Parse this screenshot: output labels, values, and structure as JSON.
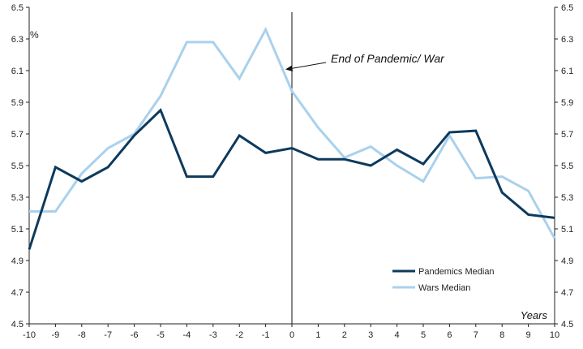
{
  "chart_data": {
    "type": "line",
    "x": [
      -10,
      -9,
      -8,
      -7,
      -6,
      -5,
      -4,
      -3,
      -2,
      -1,
      0,
      1,
      2,
      3,
      4,
      5,
      6,
      7,
      8,
      9,
      10
    ],
    "series": [
      {
        "name": "Pandemics Median",
        "color": "#0d3a5c",
        "values": [
          4.97,
          5.49,
          5.4,
          5.49,
          5.69,
          5.85,
          5.43,
          5.43,
          5.69,
          5.58,
          5.61,
          5.54,
          5.54,
          5.5,
          5.6,
          5.51,
          5.71,
          5.72,
          5.33,
          5.19,
          5.17
        ]
      },
      {
        "name": "Wars Median",
        "color": "#a9d1ec",
        "values": [
          5.21,
          5.21,
          5.45,
          5.61,
          5.7,
          5.94,
          6.28,
          6.28,
          6.05,
          6.36,
          5.97,
          5.74,
          5.55,
          5.62,
          5.5,
          5.4,
          5.69,
          5.42,
          5.43,
          5.34,
          5.04
        ]
      }
    ],
    "ylim": [
      4.5,
      6.5
    ],
    "yticks": [
      "4.5",
      "4.7",
      "4.9",
      "5.1",
      "5.3",
      "5.5",
      "5.7",
      "5.9",
      "6.1",
      "6.3",
      "6.5"
    ],
    "xticks": [
      "-10",
      "-9",
      "-8",
      "-7",
      "-6",
      "-5",
      "-4",
      "-3",
      "-2",
      "-1",
      "0",
      "1",
      "2",
      "3",
      "4",
      "5",
      "6",
      "7",
      "8",
      "9",
      "10"
    ],
    "ylabel": "%",
    "xlabel": "Years",
    "annotation": {
      "text": "End of Pandemic/ War",
      "x": 0
    },
    "vertical_line_at": 0,
    "legend_position": "bottom-right",
    "grid": false
  }
}
